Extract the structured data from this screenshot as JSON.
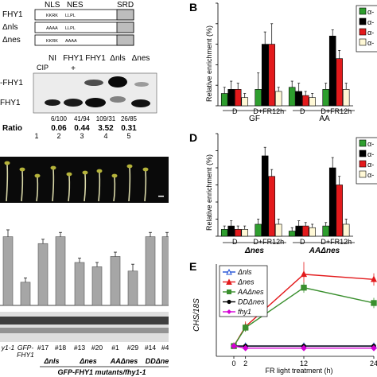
{
  "panel_a": {
    "constructs": {
      "labels": [
        "FHY1",
        "Δnls",
        "Δnes"
      ],
      "top_labels": [
        "NLS",
        "NES",
        "SRD"
      ],
      "motifs": [
        [
          "KKRK",
          "LLPL"
        ],
        [
          "AAAA",
          "LLPL"
        ],
        [
          "KKRK",
          "AAAA"
        ]
      ]
    },
    "blot": {
      "lane_labels": [
        "NI",
        "FHY1",
        "FHY1",
        "Δnls",
        "Δnes"
      ],
      "cip_label": "CIP",
      "cip_signs": [
        "",
        "+",
        "",
        "",
        ""
      ],
      "band_labels": [
        "-FHY1",
        "FHY1"
      ],
      "fractions": [
        "6/100",
        "41/94",
        "109/31",
        "26/85"
      ],
      "ratio_label": "Ratio",
      "ratios": [
        "0.06",
        "0.44",
        "3.52",
        "0.31"
      ],
      "lane_numbers": [
        "1",
        "2",
        "3",
        "4",
        "5"
      ]
    }
  },
  "panel_c": {
    "x_labels": [
      "y1-1",
      "GFP-\nFHY1",
      "#17",
      "#18",
      "#13",
      "#20",
      "#1",
      "#29",
      "#14",
      "#40"
    ],
    "group_labels": [
      "Δnls",
      "Δnes",
      "AAΔnes",
      "DDΔnes"
    ],
    "footer": "GFP-FHY1 mutants/fhy1-1"
  },
  "panel_b": {
    "letter": "B",
    "ylabel": "Relative enrichment (%)",
    "legend": [
      "α-",
      "α-",
      "α-",
      "α-"
    ],
    "groups": [
      "GF",
      "AA"
    ]
  },
  "panel_d": {
    "letter": "D",
    "ylabel": "Relative enrichment (%)",
    "legend": [
      "α-",
      "α-",
      "α-",
      "α-"
    ],
    "groups": [
      "Δnes",
      "AAΔnes"
    ]
  },
  "panel_e": {
    "letter": "E",
    "ylabel": "CHS/18S",
    "xlabel": "FR light treatment (h)",
    "legend": [
      "Δnls",
      "Δnes",
      "AAΔnes",
      "DDΔnes",
      "fhy1"
    ]
  },
  "chart_data": [
    {
      "id": "panel_b",
      "type": "bar",
      "categories": [
        "D",
        "D+FR12h",
        "D",
        "D+FR12h"
      ],
      "groups": [
        "GF",
        "AA"
      ],
      "ylabel": "Relative enrichment (%)",
      "ylim": [
        0,
        0.5
      ],
      "series": [
        {
          "values": [
            0.06,
            0.08,
            0.09,
            0.08
          ],
          "errors": [
            0.03,
            0.08,
            0.03,
            0.03
          ],
          "color": "#2e9e2e"
        },
        {
          "values": [
            0.08,
            0.3,
            0.07,
            0.34
          ],
          "errors": [
            0.04,
            0.06,
            0.04,
            0.03
          ],
          "color": "#000000"
        },
        {
          "values": [
            0.08,
            0.3,
            0.05,
            0.23
          ],
          "errors": [
            0.03,
            0.1,
            0.02,
            0.04
          ],
          "color": "#e31a1c"
        },
        {
          "values": [
            0.04,
            0.07,
            0.04,
            0.08
          ],
          "errors": [
            0.02,
            0.02,
            0.02,
            0.03
          ],
          "color": "#fff8d6"
        }
      ]
    },
    {
      "id": "panel_d",
      "type": "bar",
      "categories": [
        "D",
        "D+FR12h",
        "D",
        "D+FR12h"
      ],
      "groups": [
        "Δnes",
        "AAΔnes"
      ],
      "ylabel": "Relative enrichment (%)",
      "ylim": [
        0,
        0.6
      ],
      "series": [
        {
          "values": [
            0.04,
            0.07,
            0.03,
            0.06
          ],
          "errors": [
            0.02,
            0.03,
            0.02,
            0.02
          ],
          "color": "#2e9e2e"
        },
        {
          "values": [
            0.06,
            0.47,
            0.06,
            0.4
          ],
          "errors": [
            0.03,
            0.05,
            0.03,
            0.06
          ],
          "color": "#000000"
        },
        {
          "values": [
            0.04,
            0.35,
            0.06,
            0.3
          ],
          "errors": [
            0.02,
            0.04,
            0.02,
            0.05
          ],
          "color": "#e31a1c"
        },
        {
          "values": [
            0.04,
            0.07,
            0.05,
            0.07
          ],
          "errors": [
            0.02,
            0.03,
            0.02,
            0.03
          ],
          "color": "#fff8d6"
        }
      ]
    },
    {
      "id": "panel_e",
      "type": "line",
      "x": [
        0,
        2,
        12,
        24
      ],
      "xlabel": "FR light treatment (h)",
      "ylabel": "CHS/18S",
      "xlim": [
        -3,
        24
      ],
      "ylim": [
        0,
        9
      ],
      "series": [
        {
          "name": "Δnls",
          "values": [
            1.0,
            1.0,
            1.0,
            1.0
          ],
          "color": "#1f4fd6",
          "marker": "triangle-up-open"
        },
        {
          "name": "Δnes",
          "values": [
            1.0,
            2.9,
            8.0,
            7.5
          ],
          "color": "#e31a1c",
          "marker": "triangle-up"
        },
        {
          "name": "AAΔnes",
          "values": [
            1.0,
            2.8,
            6.7,
            5.2
          ],
          "color": "#3a8f2e",
          "marker": "square"
        },
        {
          "name": "DDΔnes",
          "values": [
            1.0,
            1.0,
            1.0,
            1.0
          ],
          "color": "#000000",
          "marker": "circle"
        },
        {
          "name": "fhy1",
          "values": [
            1.0,
            0.8,
            0.8,
            0.8
          ],
          "color": "#d400d4",
          "marker": "diamond"
        }
      ],
      "errors": [
        [
          0.2,
          0.2,
          0.2,
          0.2
        ],
        [
          0.3,
          0.5,
          1.2,
          0.6
        ],
        [
          0.2,
          0.4,
          0.5,
          0.5
        ],
        [
          0.1,
          0.1,
          0.2,
          0.2
        ],
        [
          0.1,
          0.1,
          0.2,
          0.2
        ]
      ]
    },
    {
      "id": "panel_c",
      "type": "bar",
      "categories": [
        "y1-1",
        "GFP-\nFHY1",
        "#17",
        "#18",
        "#13",
        "#20",
        "#1",
        "#29",
        "#14",
        "#40"
      ],
      "ylim": [
        0,
        1
      ],
      "series": [
        {
          "values": [
            0.8,
            0.27,
            0.72,
            0.8,
            0.5,
            0.45,
            0.57,
            0.4,
            0.8,
            0.8
          ],
          "errors": [
            0.08,
            0.05,
            0.05,
            0.05,
            0.05,
            0.05,
            0.05,
            0.08,
            0.05,
            0.05
          ],
          "color": "#a6a6a6"
        }
      ]
    }
  ]
}
